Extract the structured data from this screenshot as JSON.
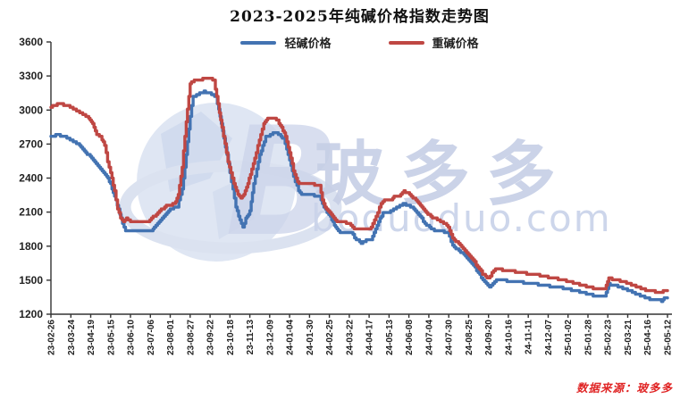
{
  "title": "2023-2025年纯碱价格指数走势图",
  "legend": {
    "items": [
      {
        "label": "轻碱价格",
        "color": "#4373b2"
      },
      {
        "label": "重碱价格",
        "color": "#bf4743"
      }
    ]
  },
  "source_note": "数据来源：玻多多",
  "watermark": {
    "letter": "B",
    "cn_text": "玻多多",
    "domain_text": "boduoduo.com",
    "globe_color": "#dfe6f3",
    "text_color": "#c6cfe6"
  },
  "colors": {
    "axis": "#333333",
    "tick_label": "#222222",
    "light_series": "#4373b2",
    "heavy_series": "#bf4743"
  },
  "chart_data": {
    "type": "line",
    "title": "2023-2025年纯碱价格指数走势图",
    "xlabel": "",
    "ylabel": "",
    "grid": false,
    "legend_position": "top",
    "ylim": [
      1200,
      3600
    ],
    "y_ticks": [
      1200,
      1500,
      1800,
      2100,
      2400,
      2700,
      3000,
      3300,
      3600
    ],
    "x_labels": [
      "23-02-26",
      "23-03-24",
      "23-04-19",
      "23-05-15",
      "23-06-10",
      "23-07-06",
      "23-08-01",
      "23-08-27",
      "23-09-22",
      "23-10-18",
      "23-11-13",
      "23-12-09",
      "24-01-04",
      "24-01-30",
      "24-02-25",
      "24-03-22",
      "24-04-17",
      "24-05-13",
      "24-06-08",
      "24-07-04",
      "24-07-30",
      "24-08-25",
      "24-09-20",
      "24-10-16",
      "24-11-11",
      "24-12-07",
      "25-01-02",
      "25-01-28",
      "25-02-23",
      "25-03-21",
      "25-04-16",
      "25-05-12"
    ],
    "series": [
      {
        "name": "轻碱价格",
        "color": "#4373b2",
        "points": [
          [
            0,
            2770
          ],
          [
            0.4,
            2780
          ],
          [
            0.8,
            2755
          ],
          [
            1.2,
            2720
          ],
          [
            1.6,
            2660
          ],
          [
            1.9,
            2600
          ],
          [
            2.2,
            2550
          ],
          [
            2.5,
            2480
          ],
          [
            2.8,
            2420
          ],
          [
            3.0,
            2345
          ],
          [
            3.2,
            2245
          ],
          [
            3.4,
            2120
          ],
          [
            3.6,
            2000
          ],
          [
            3.75,
            1940
          ],
          [
            4.0,
            1930
          ],
          [
            4.5,
            1930
          ],
          [
            5.0,
            1935
          ],
          [
            5.2,
            1960
          ],
          [
            5.6,
            2050
          ],
          [
            6.0,
            2130
          ],
          [
            6.35,
            2150
          ],
          [
            6.6,
            2300
          ],
          [
            6.8,
            2600
          ],
          [
            7.0,
            2950
          ],
          [
            7.15,
            3120
          ],
          [
            7.4,
            3140
          ],
          [
            7.7,
            3160
          ],
          [
            8.0,
            3150
          ],
          [
            8.3,
            3120
          ],
          [
            8.5,
            2950
          ],
          [
            8.7,
            2750
          ],
          [
            9.0,
            2450
          ],
          [
            9.3,
            2150
          ],
          [
            9.5,
            2030
          ],
          [
            9.65,
            1975
          ],
          [
            9.8,
            2040
          ],
          [
            10.0,
            2110
          ],
          [
            10.2,
            2350
          ],
          [
            10.5,
            2600
          ],
          [
            10.8,
            2760
          ],
          [
            11.1,
            2790
          ],
          [
            11.3,
            2800
          ],
          [
            11.5,
            2780
          ],
          [
            11.7,
            2745
          ],
          [
            12.0,
            2560
          ],
          [
            12.2,
            2410
          ],
          [
            12.45,
            2290
          ],
          [
            12.6,
            2255
          ],
          [
            13.0,
            2250
          ],
          [
            13.5,
            2245
          ],
          [
            13.8,
            2120
          ],
          [
            14.05,
            2060
          ],
          [
            14.25,
            1990
          ],
          [
            14.45,
            1930
          ],
          [
            14.8,
            1920
          ],
          [
            15.1,
            1915
          ],
          [
            15.35,
            1860
          ],
          [
            15.6,
            1830
          ],
          [
            15.85,
            1850
          ],
          [
            16.1,
            1860
          ],
          [
            16.4,
            1990
          ],
          [
            16.7,
            2090
          ],
          [
            17.0,
            2100
          ],
          [
            17.3,
            2130
          ],
          [
            17.7,
            2175
          ],
          [
            18.0,
            2160
          ],
          [
            18.4,
            2100
          ],
          [
            18.8,
            2000
          ],
          [
            19.2,
            1945
          ],
          [
            19.6,
            1930
          ],
          [
            19.95,
            1925
          ],
          [
            20.2,
            1800
          ],
          [
            20.6,
            1750
          ],
          [
            21.0,
            1680
          ],
          [
            21.4,
            1590
          ],
          [
            21.8,
            1480
          ],
          [
            22.05,
            1437
          ],
          [
            22.4,
            1505
          ],
          [
            22.75,
            1500
          ],
          [
            23.1,
            1490
          ],
          [
            23.6,
            1482
          ],
          [
            24.0,
            1475
          ],
          [
            24.5,
            1462
          ],
          [
            25.0,
            1448
          ],
          [
            25.5,
            1438
          ],
          [
            26.0,
            1422
          ],
          [
            26.5,
            1402
          ],
          [
            27.0,
            1380
          ],
          [
            27.35,
            1360
          ],
          [
            27.85,
            1355
          ],
          [
            28.05,
            1465
          ],
          [
            28.35,
            1458
          ],
          [
            28.75,
            1430
          ],
          [
            29.15,
            1400
          ],
          [
            29.55,
            1370
          ],
          [
            29.95,
            1342
          ],
          [
            30.35,
            1326
          ],
          [
            30.7,
            1318
          ],
          [
            30.9,
            1345
          ],
          [
            31.0,
            1338
          ]
        ]
      },
      {
        "name": "重碱价格",
        "color": "#bf4743",
        "points": [
          [
            0,
            3030
          ],
          [
            0.4,
            3055
          ],
          [
            0.8,
            3040
          ],
          [
            1.2,
            3000
          ],
          [
            1.6,
            2960
          ],
          [
            1.9,
            2930
          ],
          [
            2.1,
            2880
          ],
          [
            2.3,
            2790
          ],
          [
            2.5,
            2760
          ],
          [
            2.7,
            2690
          ],
          [
            2.85,
            2550
          ],
          [
            3.0,
            2450
          ],
          [
            3.2,
            2290
          ],
          [
            3.35,
            2130
          ],
          [
            3.5,
            2050
          ],
          [
            3.65,
            2010
          ],
          [
            3.8,
            2045
          ],
          [
            4.0,
            2020
          ],
          [
            4.3,
            2015
          ],
          [
            4.9,
            2020
          ],
          [
            5.3,
            2080
          ],
          [
            5.8,
            2160
          ],
          [
            6.2,
            2170
          ],
          [
            6.4,
            2250
          ],
          [
            6.6,
            2500
          ],
          [
            6.8,
            2900
          ],
          [
            7.0,
            3230
          ],
          [
            7.2,
            3260
          ],
          [
            7.5,
            3265
          ],
          [
            7.7,
            3285
          ],
          [
            8.0,
            3280
          ],
          [
            8.2,
            3260
          ],
          [
            8.4,
            3050
          ],
          [
            8.6,
            2850
          ],
          [
            8.9,
            2550
          ],
          [
            9.2,
            2350
          ],
          [
            9.4,
            2260
          ],
          [
            9.55,
            2230
          ],
          [
            9.7,
            2250
          ],
          [
            9.9,
            2350
          ],
          [
            10.1,
            2480
          ],
          [
            10.4,
            2680
          ],
          [
            10.7,
            2880
          ],
          [
            10.9,
            2920
          ],
          [
            11.2,
            2930
          ],
          [
            11.4,
            2905
          ],
          [
            11.6,
            2850
          ],
          [
            11.8,
            2770
          ],
          [
            12.0,
            2620
          ],
          [
            12.2,
            2470
          ],
          [
            12.4,
            2360
          ],
          [
            12.7,
            2350
          ],
          [
            13.1,
            2345
          ],
          [
            13.5,
            2340
          ],
          [
            13.65,
            2200
          ],
          [
            13.85,
            2120
          ],
          [
            14.1,
            2080
          ],
          [
            14.3,
            2025
          ],
          [
            14.7,
            2015
          ],
          [
            15.0,
            2000
          ],
          [
            15.25,
            1955
          ],
          [
            15.6,
            1945
          ],
          [
            15.9,
            1950
          ],
          [
            16.1,
            1960
          ],
          [
            16.35,
            2070
          ],
          [
            16.6,
            2170
          ],
          [
            16.85,
            2215
          ],
          [
            17.05,
            2205
          ],
          [
            17.25,
            2235
          ],
          [
            17.5,
            2245
          ],
          [
            17.75,
            2280
          ],
          [
            17.95,
            2275
          ],
          [
            18.2,
            2230
          ],
          [
            18.5,
            2180
          ],
          [
            18.8,
            2110
          ],
          [
            19.1,
            2060
          ],
          [
            19.5,
            2030
          ],
          [
            19.9,
            1990
          ],
          [
            20.2,
            1870
          ],
          [
            20.5,
            1820
          ],
          [
            20.9,
            1745
          ],
          [
            21.3,
            1660
          ],
          [
            21.7,
            1555
          ],
          [
            22.0,
            1515
          ],
          [
            22.35,
            1605
          ],
          [
            22.7,
            1590
          ],
          [
            23.1,
            1580
          ],
          [
            23.6,
            1570
          ],
          [
            24.0,
            1555
          ],
          [
            24.5,
            1545
          ],
          [
            25.0,
            1525
          ],
          [
            25.5,
            1510
          ],
          [
            26.0,
            1490
          ],
          [
            26.5,
            1465
          ],
          [
            27.0,
            1440
          ],
          [
            27.35,
            1428
          ],
          [
            27.85,
            1425
          ],
          [
            28.05,
            1515
          ],
          [
            28.3,
            1510
          ],
          [
            28.7,
            1490
          ],
          [
            29.1,
            1468
          ],
          [
            29.5,
            1440
          ],
          [
            29.9,
            1415
          ],
          [
            30.3,
            1400
          ],
          [
            30.65,
            1388
          ],
          [
            30.85,
            1415
          ],
          [
            31.0,
            1400
          ]
        ]
      }
    ]
  }
}
